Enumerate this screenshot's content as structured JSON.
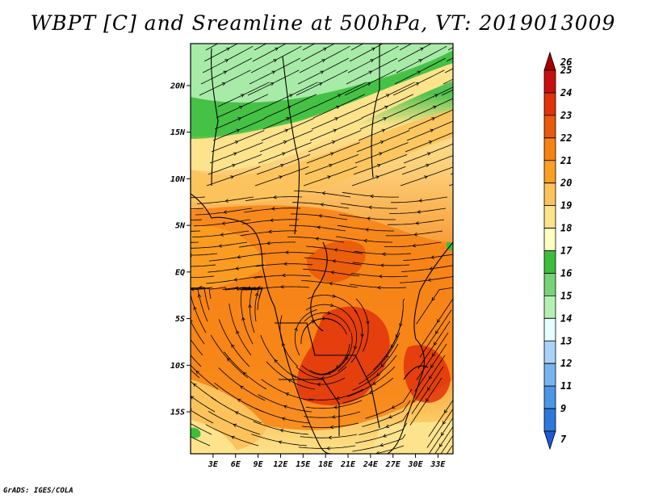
{
  "title": "WBPT [C] and Sreamline at 500hPa, VT: 2019013009",
  "credit": "GrADS: IGES/COLA",
  "map": {
    "lat_labels": [
      "20N",
      "15N",
      "10N",
      "5N",
      "EQ",
      "5S",
      "10S",
      "15S"
    ],
    "lat_values": [
      20,
      15,
      10,
      5,
      0,
      -5,
      -10,
      -15
    ],
    "lon_labels": [
      "3E",
      "6E",
      "9E",
      "12E",
      "15E",
      "18E",
      "21E",
      "24E",
      "27E",
      "30E",
      "33E"
    ],
    "lon_values": [
      3,
      6,
      9,
      12,
      15,
      18,
      21,
      24,
      27,
      30,
      33
    ],
    "lat_range": [
      -19.5,
      24.5
    ],
    "lon_range": [
      0,
      35
    ]
  },
  "colorbar": {
    "labels": [
      "26",
      "25",
      "24",
      "23",
      "22",
      "21",
      "20",
      "19",
      "18",
      "17",
      "16",
      "15",
      "14",
      "13",
      "12",
      "11",
      "9",
      "7"
    ],
    "colors": [
      "#a50000",
      "#c80f0f",
      "#e1320a",
      "#eb5a0a",
      "#f78214",
      "#fa9f22",
      "#fcc35c",
      "#fde38c",
      "#ffffc0",
      "#3cbe3c",
      "#78d278",
      "#b4f0b4",
      "#e6ffff",
      "#aad2fa",
      "#78b4f0",
      "#4b96e6",
      "#2d78dc",
      "#1e5ad2"
    ]
  }
}
